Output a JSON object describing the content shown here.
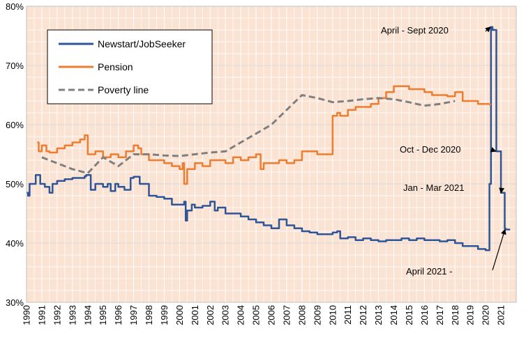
{
  "chart_data": {
    "type": "line",
    "title": "",
    "xlabel": "",
    "ylabel": "",
    "xlim": [
      1990,
      2022
    ],
    "ylim": [
      30,
      80
    ],
    "y_ticks": [
      "30%",
      "40%",
      "50%",
      "60%",
      "70%",
      "80%"
    ],
    "y_tick_values": [
      30,
      40,
      50,
      60,
      70,
      80
    ],
    "x_ticks": [
      "1990",
      "1991",
      "1992",
      "1993",
      "1994",
      "1995",
      "1996",
      "1997",
      "1998",
      "1999",
      "2000",
      "2001",
      "2002",
      "2003",
      "2004",
      "2005",
      "2006",
      "2007",
      "2008",
      "2009",
      "2010",
      "2011",
      "2012",
      "2013",
      "2014",
      "2015",
      "2016",
      "2017",
      "2018",
      "2019",
      "2020",
      "2021"
    ],
    "x_tick_values": [
      1990,
      1991,
      1992,
      1993,
      1994,
      1995,
      1996,
      1997,
      1998,
      1999,
      2000,
      2001,
      2002,
      2003,
      2004,
      2005,
      2006,
      2007,
      2008,
      2009,
      2010,
      2011,
      2012,
      2013,
      2014,
      2015,
      2016,
      2017,
      2018,
      2019,
      2020,
      2021
    ],
    "grid": true,
    "plot_background": "#fbe3d3",
    "legend_position": "top-left",
    "series": [
      {
        "name": "Newstart/JobSeeker",
        "color": "#2e5597",
        "style": "solid",
        "x": [
          1990.0,
          1990.1,
          1990.2,
          1990.3,
          1990.6,
          1990.8,
          1990.9,
          1991.2,
          1991.5,
          1991.7,
          1991.8,
          1992.0,
          1992.5,
          1993.0,
          1993.5,
          1993.8,
          1993.9,
          1994.2,
          1994.5,
          1994.8,
          1995.0,
          1995.3,
          1995.5,
          1995.8,
          1996.0,
          1996.4,
          1996.8,
          1997.0,
          1997.4,
          1997.5,
          1998.0,
          1998.5,
          1999.0,
          1999.5,
          2000.0,
          2000.3,
          2000.4,
          2000.5,
          2000.8,
          2001.0,
          2001.5,
          2002.0,
          2002.3,
          2002.5,
          2003.0,
          2003.5,
          2004.0,
          2004.5,
          2005.0,
          2005.5,
          2006.0,
          2006.5,
          2007.0,
          2007.5,
          2008.0,
          2008.5,
          2009.0,
          2009.5,
          2010.0,
          2010.3,
          2010.5,
          2011.0,
          2011.5,
          2012.0,
          2012.5,
          2013.0,
          2013.5,
          2014.0,
          2014.5,
          2015.0,
          2015.5,
          2016.0,
          2016.5,
          2017.0,
          2017.5,
          2018.0,
          2018.5,
          2019.0,
          2019.5,
          2020.0,
          2020.2,
          2020.25,
          2020.35,
          2020.45,
          2020.55,
          2020.7,
          2020.8,
          2021.0,
          2021.15,
          2021.25,
          2021.3,
          2021.6
        ],
        "values": [
          48.5,
          48.0,
          50.0,
          50.0,
          51.5,
          51.5,
          50.0,
          49.5,
          48.5,
          50.0,
          50.0,
          50.5,
          50.8,
          51.0,
          51.0,
          51.3,
          51.5,
          49.0,
          50.0,
          50.0,
          49.5,
          50.0,
          48.8,
          50.0,
          49.5,
          49.0,
          51.0,
          51.2,
          50.0,
          50.0,
          48.0,
          47.8,
          47.5,
          46.5,
          46.5,
          47.0,
          43.8,
          45.5,
          46.5,
          46.0,
          46.3,
          47.0,
          45.5,
          46.0,
          45.0,
          45.0,
          44.5,
          44.0,
          43.5,
          43.0,
          42.5,
          44.0,
          43.0,
          42.5,
          42.0,
          41.8,
          41.5,
          41.5,
          41.8,
          42.0,
          40.8,
          41.0,
          40.5,
          40.8,
          40.5,
          40.3,
          40.5,
          40.5,
          40.8,
          40.5,
          40.8,
          40.5,
          40.5,
          40.3,
          40.5,
          40.0,
          39.5,
          39.5,
          39.0,
          38.8,
          38.8,
          50.0,
          76.5,
          76.0,
          76.0,
          55.5,
          55.5,
          48.5,
          48.5,
          42.5,
          42.3,
          42.3
        ]
      },
      {
        "name": "Pension",
        "color": "#ed7d31",
        "style": "solid",
        "x": [
          1990.7,
          1990.8,
          1991.0,
          1991.3,
          1991.5,
          1992.0,
          1992.5,
          1993.0,
          1993.5,
          1993.8,
          1994.0,
          1994.5,
          1995.0,
          1995.5,
          1996.0,
          1996.5,
          1997.0,
          1997.3,
          1997.5,
          1998.0,
          1998.5,
          1999.0,
          1999.5,
          2000.0,
          2000.2,
          2000.3,
          2000.5,
          2001.0,
          2001.5,
          2002.0,
          2002.5,
          2003.0,
          2003.5,
          2004.0,
          2004.5,
          2005.0,
          2005.3,
          2005.5,
          2006.0,
          2006.5,
          2007.0,
          2007.5,
          2008.0,
          2008.5,
          2009.0,
          2009.5,
          2010.0,
          2010.3,
          2010.5,
          2011.0,
          2011.5,
          2012.0,
          2012.5,
          2013.0,
          2013.5,
          2014.0,
          2014.5,
          2015.0,
          2015.5,
          2016.0,
          2016.5,
          2017.0,
          2017.5,
          2018.0,
          2018.5,
          2019.0,
          2019.5,
          2020.0,
          2020.3
        ],
        "values": [
          57.0,
          55.5,
          56.5,
          55.5,
          55.3,
          56.0,
          56.5,
          57.0,
          57.5,
          58.2,
          55.0,
          55.5,
          54.5,
          55.0,
          54.5,
          55.5,
          56.5,
          56.0,
          55.0,
          54.0,
          54.0,
          53.5,
          53.0,
          52.5,
          53.5,
          50.0,
          52.5,
          53.5,
          53.0,
          54.0,
          54.0,
          53.5,
          54.5,
          54.0,
          54.5,
          55.0,
          52.5,
          53.5,
          53.5,
          54.0,
          53.5,
          54.0,
          55.5,
          55.5,
          55.0,
          55.0,
          61.5,
          62.0,
          61.5,
          62.5,
          63.0,
          63.0,
          63.5,
          64.5,
          65.5,
          66.5,
          66.5,
          66.0,
          66.0,
          65.5,
          65.0,
          65.0,
          64.8,
          65.5,
          64.0,
          64.0,
          63.5,
          63.5,
          63.3
        ]
      },
      {
        "name": "Poverty line",
        "color": "#7f7f7f",
        "style": "dashed",
        "x": [
          1991.0,
          1992.0,
          1993.0,
          1994.0,
          1995.0,
          1996.0,
          1997.0,
          1998.0,
          1999.0,
          2000.0,
          2001.0,
          2002.0,
          2003.0,
          2004.0,
          2005.0,
          2006.0,
          2007.0,
          2008.0,
          2009.0,
          2010.0,
          2011.0,
          2012.0,
          2013.0,
          2014.0,
          2015.0,
          2016.0,
          2017.0,
          2018.0
        ],
        "values": [
          54.5,
          53.5,
          52.5,
          51.8,
          54.5,
          53.0,
          55.0,
          55.0,
          54.8,
          54.7,
          55.0,
          55.3,
          55.5,
          57.0,
          58.5,
          60.0,
          62.5,
          65.0,
          64.5,
          63.8,
          64.0,
          64.3,
          64.5,
          64.3,
          63.8,
          63.2,
          63.5,
          64.0
        ]
      }
    ],
    "annotations": [
      {
        "text": "April - Sept 2020",
        "target": [
          2020.45,
          76.5
        ]
      },
      {
        "text": "Oct - Dec 2020",
        "target": [
          2020.8,
          55.5
        ]
      },
      {
        "text": "Jan - Mar 2021",
        "target": [
          2021.15,
          48.5
        ]
      },
      {
        "text": "April 2021 -",
        "target": [
          2021.4,
          42.3
        ]
      }
    ]
  }
}
